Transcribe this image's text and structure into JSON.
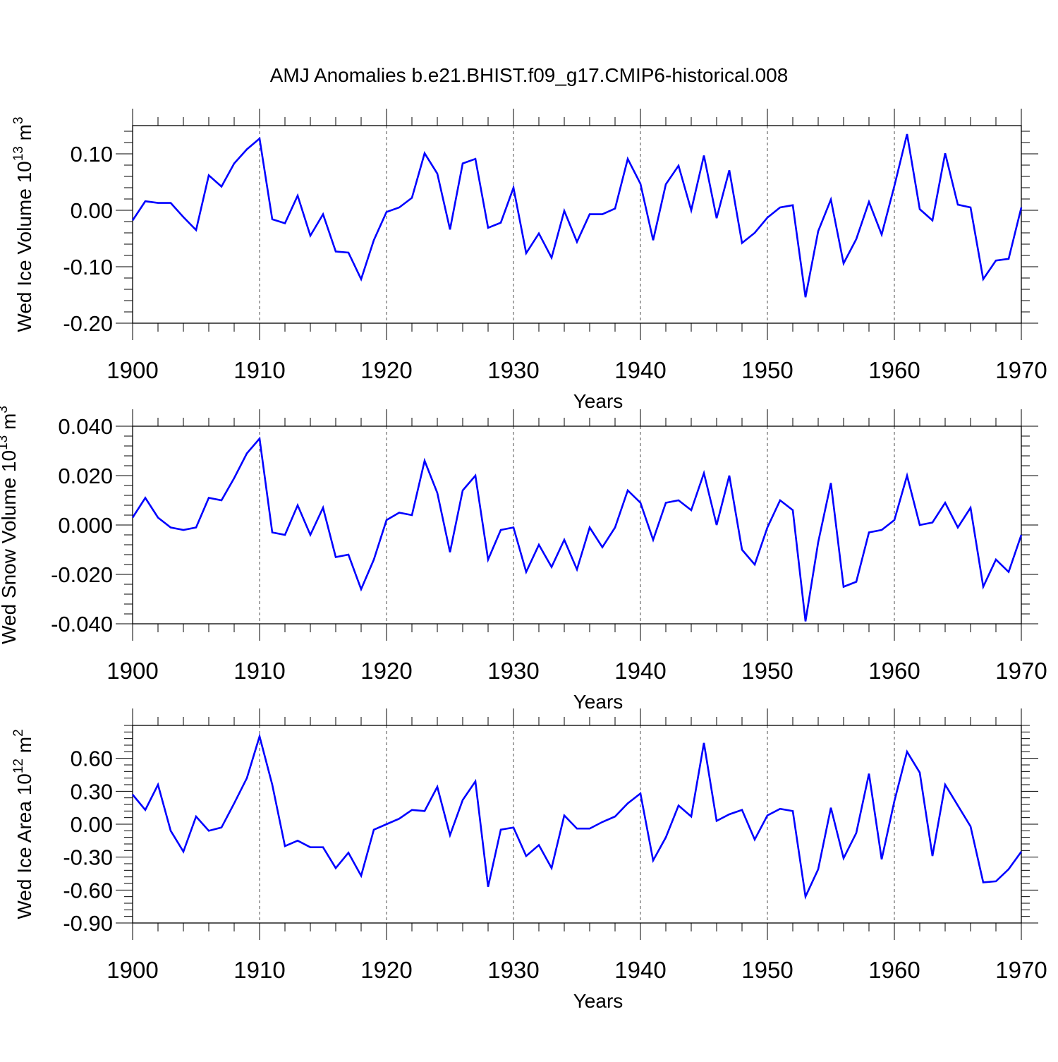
{
  "title": "AMJ Anomalies b.e21.BHIST.f09_g17.CMIP6-historical.008",
  "colors": {
    "line": "#0000ff",
    "axis": "#000000",
    "grid": "#000000"
  },
  "chart_data": [
    {
      "type": "line",
      "name": "ice-volume",
      "ylabel": {
        "base": "Wed Ice Volume 10",
        "exp": "13",
        "unit": " m",
        "unit_exp": "3"
      },
      "xlabel": "Years",
      "xlim": [
        1900,
        1970
      ],
      "xticks": [
        1900,
        1910,
        1920,
        1930,
        1940,
        1950,
        1960,
        1970
      ],
      "ylim": [
        -0.2,
        0.15
      ],
      "yticks": [
        -0.2,
        -0.1,
        0.0,
        0.1
      ],
      "ytick_labels": [
        "-0.20",
        "-0.10",
        "0.00",
        "0.10"
      ],
      "grid_x_dashed": [
        1910,
        1920,
        1930,
        1940,
        1950,
        1960
      ],
      "x_start": 1900,
      "values": [
        -0.018,
        0.016,
        0.013,
        0.013,
        -0.012,
        -0.035,
        0.062,
        0.042,
        0.083,
        0.108,
        0.127,
        -0.016,
        -0.023,
        0.026,
        -0.045,
        -0.007,
        -0.073,
        -0.075,
        -0.122,
        -0.053,
        -0.003,
        0.005,
        0.022,
        0.101,
        0.065,
        -0.034,
        0.083,
        0.091,
        -0.031,
        -0.022,
        0.04,
        -0.076,
        -0.041,
        -0.084,
        -0.001,
        -0.056,
        -0.007,
        -0.007,
        0.003,
        0.091,
        0.047,
        -0.053,
        0.046,
        0.079,
        0.0,
        0.097,
        -0.014,
        0.071,
        -0.058,
        -0.04,
        -0.013,
        0.005,
        0.009,
        -0.154,
        -0.037,
        0.019,
        -0.094,
        -0.051,
        0.015,
        -0.043,
        0.043,
        0.135,
        0.002,
        -0.018,
        0.101,
        0.01,
        0.005,
        -0.122,
        -0.089,
        -0.086,
        0.005
      ]
    },
    {
      "type": "line",
      "name": "snow-volume",
      "ylabel": {
        "base": "Wed Snow Volume 10",
        "exp": "13",
        "unit": " m",
        "unit_exp": "3"
      },
      "xlabel": "Years",
      "xlim": [
        1900,
        1970
      ],
      "xticks": [
        1900,
        1910,
        1920,
        1930,
        1940,
        1950,
        1960,
        1970
      ],
      "ylim": [
        -0.04,
        0.04
      ],
      "yticks": [
        -0.04,
        -0.02,
        0.0,
        0.02,
        0.04
      ],
      "ytick_labels": [
        "-0.040",
        "-0.020",
        "0.000",
        "0.020",
        "0.040"
      ],
      "grid_x_dashed": [
        1910,
        1920,
        1930,
        1940,
        1950,
        1960
      ],
      "x_start": 1900,
      "values": [
        0.003,
        0.011,
        0.003,
        -0.001,
        -0.002,
        -0.001,
        0.011,
        0.01,
        0.019,
        0.029,
        0.035,
        -0.003,
        -0.004,
        0.008,
        -0.004,
        0.007,
        -0.013,
        -0.012,
        -0.026,
        -0.014,
        0.002,
        0.005,
        0.004,
        0.026,
        0.013,
        -0.011,
        0.014,
        0.02,
        -0.014,
        -0.002,
        -0.001,
        -0.019,
        -0.008,
        -0.017,
        -0.006,
        -0.018,
        -0.001,
        -0.009,
        -0.001,
        0.014,
        0.009,
        -0.006,
        0.009,
        0.01,
        0.006,
        0.021,
        0.0,
        0.02,
        -0.01,
        -0.016,
        -0.001,
        0.01,
        0.006,
        -0.039,
        -0.007,
        0.017,
        -0.025,
        -0.023,
        -0.003,
        -0.002,
        0.002,
        0.02,
        0.0,
        0.001,
        0.009,
        -0.001,
        0.007,
        -0.025,
        -0.014,
        -0.019,
        -0.004
      ]
    },
    {
      "type": "line",
      "name": "ice-area",
      "ylabel": {
        "base": "Wed Ice Area 10",
        "exp": "12",
        "unit": " m",
        "unit_exp": "2"
      },
      "xlabel": "Years",
      "xlim": [
        1900,
        1970
      ],
      "xticks": [
        1900,
        1910,
        1920,
        1930,
        1940,
        1950,
        1960,
        1970
      ],
      "ylim": [
        -0.9,
        0.9
      ],
      "yticks": [
        -0.9,
        -0.6,
        -0.3,
        0.0,
        0.3,
        0.6
      ],
      "ytick_labels": [
        "-0.90",
        "-0.60",
        "-0.30",
        "0.00",
        "0.30",
        "0.60"
      ],
      "grid_x_dashed": [
        1910,
        1920,
        1930,
        1940,
        1950,
        1960
      ],
      "x_start": 1900,
      "values": [
        0.27,
        0.13,
        0.36,
        -0.06,
        -0.25,
        0.07,
        -0.06,
        -0.03,
        0.19,
        0.42,
        0.8,
        0.36,
        -0.2,
        -0.15,
        -0.21,
        -0.21,
        -0.4,
        -0.26,
        -0.47,
        -0.05,
        0.0,
        0.05,
        0.13,
        0.12,
        0.34,
        -0.1,
        0.22,
        0.39,
        -0.57,
        -0.05,
        -0.03,
        -0.29,
        -0.19,
        -0.4,
        0.08,
        -0.04,
        -0.04,
        0.02,
        0.07,
        0.19,
        0.28,
        -0.33,
        -0.12,
        0.17,
        0.07,
        0.74,
        0.03,
        0.09,
        0.13,
        -0.14,
        0.08,
        0.14,
        0.12,
        -0.66,
        -0.41,
        0.15,
        -0.31,
        -0.08,
        0.46,
        -0.32,
        0.21,
        0.66,
        0.47,
        -0.29,
        0.36,
        0.17,
        -0.02,
        -0.53,
        -0.52,
        -0.41,
        -0.25
      ]
    }
  ]
}
